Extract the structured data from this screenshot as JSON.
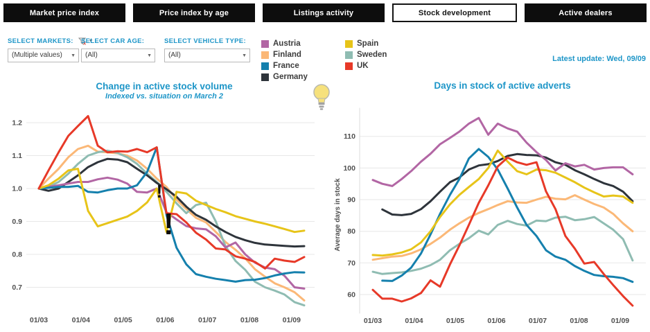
{
  "tabs": [
    {
      "label": "Market price index",
      "active": false
    },
    {
      "label": "Price index by age",
      "active": false
    },
    {
      "label": "Listings activity",
      "active": false
    },
    {
      "label": "Stock development",
      "active": true
    },
    {
      "label": "Active dealers",
      "active": false
    }
  ],
  "filters": [
    {
      "label": "SELECT MARKETS:",
      "value": "(Multiple values)",
      "has_clear_filter_icon": true
    },
    {
      "label": "SELECT CAR AGE:",
      "value": "(All)",
      "has_clear_filter_icon": false
    },
    {
      "label": "SELECT VEHICLE TYPE:",
      "value": "(All)",
      "has_clear_filter_icon": false
    }
  ],
  "legend": {
    "columns": [
      [
        {
          "label": "Austria",
          "color": "#b266a4"
        },
        {
          "label": "Finland",
          "color": "#fbb877"
        },
        {
          "label": "France",
          "color": "#1580ad"
        },
        {
          "label": "Germany",
          "color": "#2e343b"
        }
      ],
      [
        {
          "label": "Spain",
          "color": "#e7c419"
        },
        {
          "label": "Sweden",
          "color": "#8fbcb2"
        },
        {
          "label": "UK",
          "color": "#e73928"
        }
      ]
    ]
  },
  "latest_update": "Latest update: Wed, 09/09",
  "lightbulb_icon": "lightbulb",
  "colors": {
    "accent_blue": "#1e96c8",
    "tab_black": "#0d0d0d",
    "tick_gray": "#4f4f4f",
    "gridline": "#e7e7e7"
  },
  "chart_data": [
    {
      "type": "line",
      "title": "Change in active stock volume",
      "subtitle": "Indexed vs. situation on March 2",
      "xlabel": "",
      "ylabel": "",
      "grid": "horizontal",
      "legend_position": "top-shared",
      "xticks": [
        3,
        4,
        5,
        6,
        7,
        8,
        9
      ],
      "xtick_labels": [
        "01/03",
        "01/04",
        "01/05",
        "01/06",
        "01/07",
        "01/08",
        "01/09"
      ],
      "yticks": [
        0.7,
        0.8,
        0.9,
        1.0,
        1.1,
        1.2
      ],
      "ytick_labels": [
        "0.7",
        "0.8",
        "0.9",
        "1.0",
        "1.1",
        "1.2"
      ],
      "ylim": [
        0.62,
        1.26
      ],
      "xlim": [
        2.85,
        9.55
      ],
      "x": [
        3.0,
        3.23,
        3.47,
        3.7,
        3.93,
        4.17,
        4.4,
        4.63,
        4.87,
        5.1,
        5.33,
        5.57,
        5.8,
        6.03,
        6.27,
        6.5,
        6.73,
        6.97,
        7.2,
        7.43,
        7.67,
        7.9,
        8.13,
        8.37,
        8.6,
        8.83,
        9.07,
        9.3
      ],
      "series": [
        {
          "name": "Finland",
          "color": "#fbb877",
          "values": [
            1.0,
            1.03,
            1.06,
            1.095,
            1.12,
            1.13,
            1.112,
            1.11,
            1.107,
            1.1,
            1.085,
            1.06,
            1.03,
            1.005,
            0.966,
            0.938,
            0.911,
            0.897,
            0.868,
            0.838,
            0.814,
            0.788,
            0.755,
            0.732,
            0.712,
            0.7,
            0.685,
            0.66
          ]
        },
        {
          "name": "Sweden",
          "color": "#8fbcb2",
          "values": [
            1.0,
            1.005,
            1.02,
            1.045,
            1.075,
            1.1,
            1.11,
            1.115,
            1.108,
            1.095,
            1.075,
            1.045,
            1.02,
            0.99,
            0.955,
            0.925,
            0.95,
            0.957,
            0.9,
            0.825,
            0.78,
            0.753,
            0.717,
            0.7,
            0.69,
            0.678,
            0.655,
            0.645
          ]
        },
        {
          "name": "Germany",
          "color": "#2e343b",
          "values": [
            1.0,
            0.993,
            1.0,
            1.02,
            1.04,
            1.065,
            1.08,
            1.09,
            1.088,
            1.08,
            1.06,
            1.04,
            1.017,
            0.998,
            0.975,
            0.945,
            0.92,
            0.905,
            0.885,
            0.868,
            0.853,
            0.843,
            0.835,
            0.83,
            0.828,
            0.826,
            0.824,
            0.825
          ]
        },
        {
          "name": "Austria",
          "color": "#b266a4",
          "values": [
            1.0,
            1.005,
            1.01,
            1.015,
            1.02,
            1.02,
            1.028,
            1.033,
            1.027,
            1.015,
            0.99,
            0.988,
            1.0,
            0.928,
            0.906,
            0.886,
            0.879,
            0.876,
            0.855,
            0.821,
            0.836,
            0.8,
            0.775,
            0.76,
            0.755,
            0.735,
            0.7,
            0.696
          ]
        },
        {
          "name": "France",
          "color": "#1580ad",
          "values": [
            1.0,
            1.002,
            1.005,
            1.005,
            1.008,
            0.99,
            0.988,
            0.995,
            1.0,
            1.0,
            1.01,
            1.05,
            1.125,
            0.92,
            0.82,
            0.77,
            0.74,
            0.732,
            0.726,
            0.722,
            0.717,
            0.722,
            0.723,
            0.728,
            0.736,
            0.742,
            0.746,
            0.745
          ]
        },
        {
          "name": "Spain",
          "color": "#e7c419",
          "values": [
            1.0,
            1.01,
            1.03,
            1.055,
            1.06,
            0.932,
            0.885,
            0.895,
            0.905,
            0.915,
            0.932,
            0.958,
            1.0,
            0.868,
            0.99,
            0.985,
            0.963,
            0.95,
            0.938,
            0.928,
            0.916,
            0.908,
            0.9,
            0.893,
            0.885,
            0.877,
            0.868,
            0.872
          ]
        },
        {
          "name": "UK",
          "color": "#e73928",
          "values": [
            1.0,
            1.055,
            1.11,
            1.16,
            1.19,
            1.22,
            1.13,
            1.11,
            1.113,
            1.112,
            1.12,
            1.11,
            1.125,
            0.925,
            0.922,
            0.897,
            0.866,
            0.845,
            0.818,
            0.815,
            0.794,
            0.787,
            0.777,
            0.757,
            0.787,
            0.781,
            0.777,
            0.792
          ]
        }
      ],
      "annotations": [
        {
          "x": 5.86,
          "y": 0.973,
          "text": "!",
          "size": 26
        },
        {
          "x": 6.08,
          "y": 0.861,
          "text": "!",
          "size": 44
        }
      ]
    },
    {
      "type": "line",
      "title": "Days in stock of active adverts",
      "subtitle": "",
      "xlabel": "",
      "ylabel": "Average days in stock",
      "grid": "horizontal",
      "legend_position": "top-shared",
      "xticks": [
        3,
        4,
        5,
        6,
        7,
        8,
        9
      ],
      "xtick_labels": [
        "01/03",
        "01/04",
        "01/05",
        "01/06",
        "01/07",
        "01/08",
        "01/09"
      ],
      "yticks": [
        60,
        70,
        80,
        90,
        100,
        110
      ],
      "ytick_labels": [
        "60",
        "70",
        "80",
        "90",
        "100",
        "110"
      ],
      "ylim": [
        54,
        119
      ],
      "xlim": [
        2.85,
        9.55
      ],
      "x": [
        3.0,
        3.23,
        3.47,
        3.7,
        3.93,
        4.17,
        4.4,
        4.63,
        4.87,
        5.1,
        5.33,
        5.57,
        5.8,
        6.03,
        6.27,
        6.5,
        6.73,
        6.97,
        7.2,
        7.43,
        7.67,
        7.9,
        8.13,
        8.37,
        8.6,
        8.83,
        9.07,
        9.3
      ],
      "series": [
        {
          "name": "Finland",
          "color": "#fbb877",
          "values": [
            71.0,
            71.5,
            72.0,
            72.2,
            73.0,
            74.3,
            76.0,
            78.0,
            80.5,
            82.5,
            84.3,
            85.8,
            87.0,
            88.3,
            89.5,
            89.1,
            89.0,
            90.0,
            90.9,
            90.3,
            90.1,
            91.4,
            90.0,
            88.6,
            87.5,
            85.5,
            82.5,
            80.0
          ]
        },
        {
          "name": "Sweden",
          "color": "#8fbcb2",
          "values": [
            67.2,
            66.5,
            66.8,
            67.0,
            67.5,
            68.2,
            69.3,
            71.0,
            74.0,
            76.0,
            77.8,
            80.2,
            79.0,
            82.0,
            83.3,
            82.3,
            81.8,
            83.4,
            83.2,
            84.3,
            84.6,
            83.5,
            83.8,
            84.5,
            82.5,
            80.5,
            77.5,
            70.8
          ]
        },
        {
          "name": "Germany",
          "color": "#2e343b",
          "values": [
            null,
            86.9,
            85.3,
            85.1,
            85.5,
            87.0,
            89.5,
            92.5,
            95.5,
            97.0,
            99.5,
            100.8,
            101.2,
            102.2,
            103.8,
            104.4,
            104.1,
            104.0,
            103.3,
            101.8,
            101.0,
            99.3,
            98.0,
            96.5,
            95.2,
            94.3,
            92.5,
            89.5
          ]
        },
        {
          "name": "Austria",
          "color": "#b266a4",
          "values": [
            96.2,
            95.0,
            94.3,
            96.5,
            99.0,
            102.0,
            104.5,
            107.5,
            109.5,
            111.5,
            114.0,
            115.8,
            110.5,
            114.0,
            112.5,
            111.5,
            108.0,
            105.0,
            102.5,
            99.2,
            101.5,
            100.5,
            101.0,
            99.5,
            100.0,
            100.2,
            100.2,
            98.0
          ]
        },
        {
          "name": "France",
          "color": "#1580ad",
          "values": [
            null,
            64.4,
            64.3,
            66.0,
            68.5,
            73.0,
            79.0,
            85.5,
            91.5,
            96.5,
            103.0,
            106.0,
            103.5,
            99.5,
            93.5,
            87.5,
            82.0,
            78.5,
            74.0,
            72.0,
            71.0,
            69.0,
            67.5,
            66.2,
            65.8,
            65.6,
            65.2,
            64.0
          ]
        },
        {
          "name": "Spain",
          "color": "#e7c419",
          "values": [
            72.5,
            72.3,
            72.7,
            73.3,
            74.3,
            76.5,
            80.0,
            84.5,
            88.5,
            91.5,
            94.0,
            96.5,
            100.0,
            105.5,
            102.0,
            99.0,
            98.0,
            99.5,
            99.3,
            98.5,
            97.0,
            95.5,
            93.8,
            92.3,
            91.0,
            91.3,
            91.0,
            89.0
          ]
        },
        {
          "name": "UK",
          "color": "#e73928",
          "values": [
            61.5,
            58.7,
            58.7,
            57.8,
            58.8,
            60.5,
            64.5,
            62.5,
            69.5,
            75.5,
            82.0,
            89.0,
            94.5,
            100.5,
            103.3,
            101.8,
            101.0,
            101.8,
            92.6,
            87.0,
            78.5,
            74.5,
            69.8,
            70.3,
            66.5,
            63.0,
            59.5,
            56.5
          ]
        }
      ],
      "annotations": []
    }
  ]
}
